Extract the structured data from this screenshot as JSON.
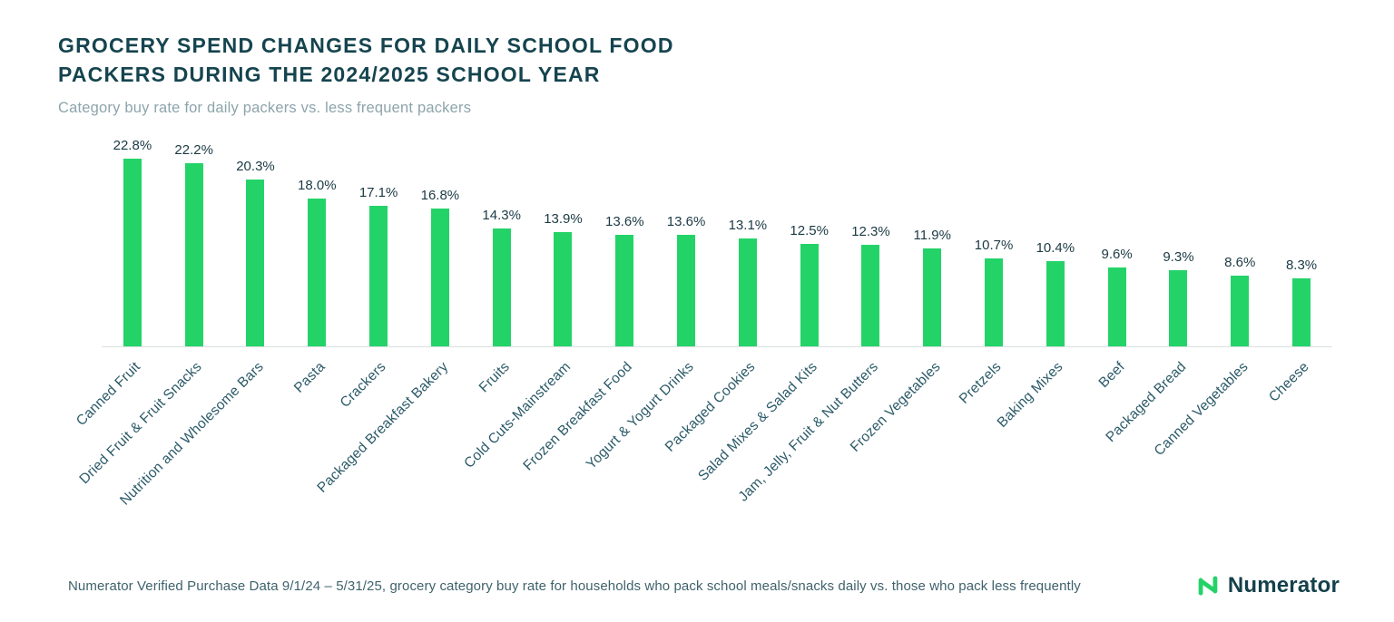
{
  "header": {
    "title_line1": "GROCERY SPEND CHANGES FOR DAILY SCHOOL FOOD",
    "title_line2": "PACKERS DURING THE 2024/2025 SCHOOL YEAR",
    "subtitle": "Category buy rate for daily packers vs. less frequent packers"
  },
  "chart_data": {
    "type": "bar",
    "title": "Grocery spend changes for daily school food packers during the 2024/2025 school year",
    "subtitle": "Category buy rate for daily packers vs. less frequent packers",
    "categories": [
      "Canned Fruit",
      "Dried Fruit & Fruit Snacks",
      "Nutrition and Wholesome Bars",
      "Pasta",
      "Crackers",
      "Packaged Breakfast Bakery",
      "Fruits",
      "Cold Cuts-Mainstream",
      "Frozen Breakfast Food",
      "Yogurt & Yogurt Drinks",
      "Packaged Cookies",
      "Salad Mixes & Salad Kits",
      "Jam, Jelly, Fruit & Nut Butters",
      "Frozen Vegetables",
      "Pretzels",
      "Baking Mixes",
      "Beef",
      "Packaged Bread",
      "Canned Vegetables",
      "Cheese"
    ],
    "values": [
      22.8,
      22.2,
      20.3,
      18.0,
      17.1,
      16.8,
      14.3,
      13.9,
      13.6,
      13.6,
      13.1,
      12.5,
      12.3,
      11.9,
      10.7,
      10.4,
      9.6,
      9.3,
      8.6,
      8.3
    ],
    "value_suffix": "%",
    "xlabel": "",
    "ylabel": "",
    "ylim": [
      0,
      25
    ],
    "grid": false,
    "legend": false,
    "bar_color": "#24d368"
  },
  "footer": {
    "footnote": "Numerator Verified Purchase Data 9/1/24 – 5/31/25, grocery category buy rate for households who pack school meals/snacks daily vs. those who pack less frequently",
    "logo_text": "Numerator"
  },
  "colors": {
    "accent_green": "#24d368",
    "title_teal": "#15444f",
    "subtitle_gray": "#8da4ac",
    "axis_label_teal": "#2b5a68",
    "baseline_gray": "#d9dfe1"
  }
}
